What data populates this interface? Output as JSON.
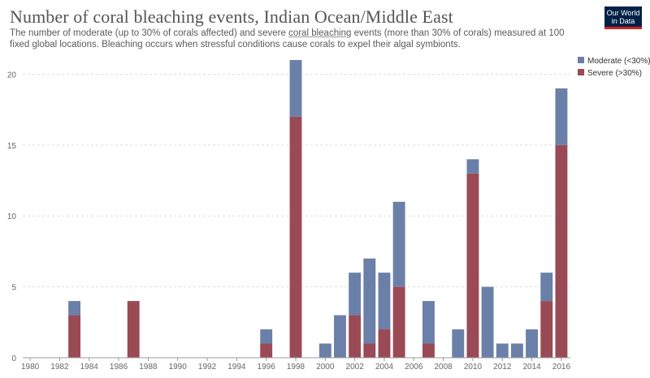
{
  "header": {
    "title": "Number of coral bleaching events, Indian Ocean/Middle East",
    "subtitle_pre": "The number of moderate (up to 30% of corals affected) and severe ",
    "subtitle_link": "coral bleaching",
    "subtitle_post": " events (more than 30% of corals) measured at 100 fixed global locations. Bleaching occurs when stressful conditions cause corals to expel their algal symbionts.",
    "logo_line1": "Our World",
    "logo_line2": "in Data"
  },
  "chart_data": {
    "type": "bar",
    "stacked": true,
    "x": [
      1980,
      1981,
      1982,
      1983,
      1984,
      1985,
      1986,
      1987,
      1988,
      1989,
      1990,
      1991,
      1992,
      1993,
      1994,
      1995,
      1996,
      1997,
      1998,
      1999,
      2000,
      2001,
      2002,
      2003,
      2004,
      2005,
      2006,
      2007,
      2008,
      2009,
      2010,
      2011,
      2012,
      2013,
      2014,
      2015,
      2016
    ],
    "series": [
      {
        "name": "Severe (>30%)",
        "color": "#9a4a55",
        "values": [
          0,
          0,
          0,
          3,
          0,
          0,
          0,
          4,
          0,
          0,
          0,
          0,
          0,
          0,
          0,
          0,
          1,
          0,
          17,
          0,
          0,
          0,
          3,
          1,
          2,
          5,
          0,
          1,
          0,
          0,
          13,
          0,
          0,
          0,
          0,
          4,
          15
        ]
      },
      {
        "name": "Moderate (<30%)",
        "color": "#6b80a8",
        "values": [
          0,
          0,
          0,
          1,
          0,
          0,
          0,
          0,
          0,
          0,
          0,
          0,
          0,
          0,
          0,
          0,
          1,
          0,
          4,
          0,
          1,
          3,
          3,
          6,
          4,
          6,
          0,
          3,
          0,
          2,
          1,
          5,
          1,
          1,
          2,
          2,
          4
        ]
      }
    ],
    "ylim": [
      0,
      21
    ],
    "yticks": [
      0,
      5,
      10,
      15,
      20
    ],
    "xticks": [
      1980,
      1982,
      1984,
      1986,
      1988,
      1990,
      1992,
      1994,
      1996,
      1998,
      2000,
      2002,
      2004,
      2006,
      2008,
      2010,
      2012,
      2014,
      2016
    ],
    "legend_position": "top-right",
    "legend": [
      "Moderate (<30%)",
      "Severe (>30%)"
    ],
    "grid": "horizontal-dashed",
    "xlabel": "",
    "ylabel": ""
  }
}
